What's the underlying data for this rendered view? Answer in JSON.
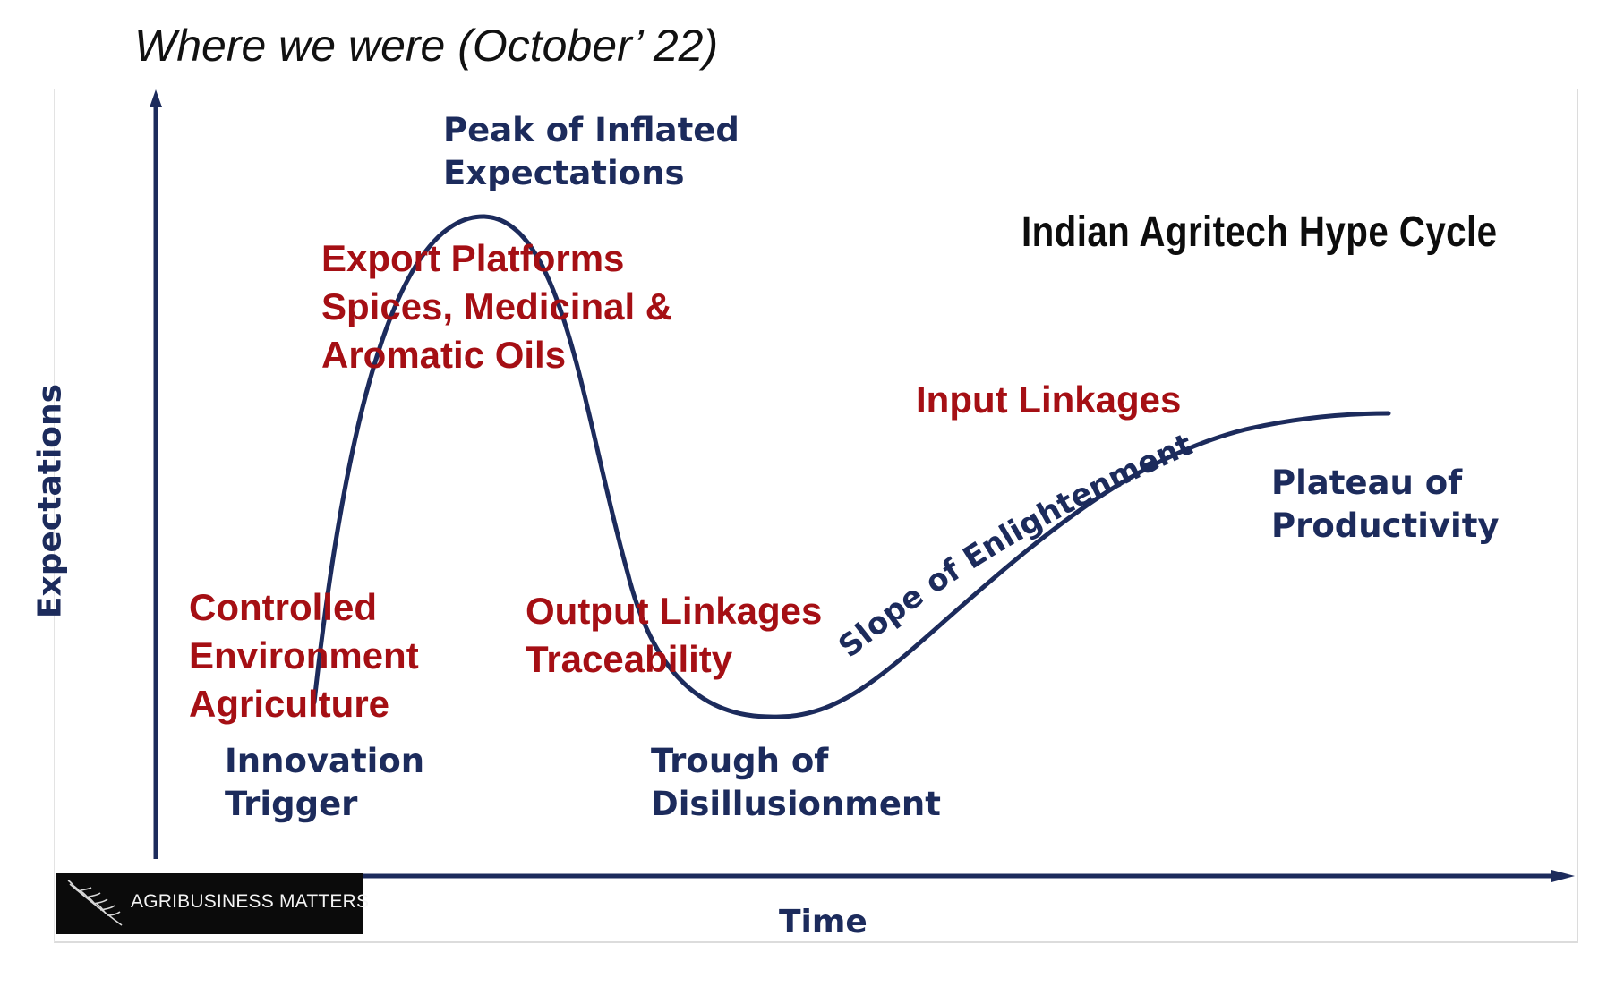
{
  "slide": {
    "title": "Where we were (October’ 22)"
  },
  "diagram": {
    "title": "Indian Agritech Hype Cycle",
    "axis_y": "Expectations",
    "axis_x": "Time",
    "curve_color": "#1c2b5c",
    "stage_color": "#1c2b5c",
    "item_color": "#a50f14",
    "stages": {
      "innovation_trigger": [
        "Innovation",
        "Trigger"
      ],
      "peak": [
        "Peak of Inflated",
        "Expectations"
      ],
      "trough": [
        "Trough of",
        "Disillusionment"
      ],
      "slope": "Slope of Enlightenment",
      "plateau": [
        "Plateau of",
        "Productivity"
      ]
    },
    "items": {
      "controlled_environment": [
        "Controlled",
        "Environment",
        "Agriculture"
      ],
      "export_platforms": [
        "Export Platforms",
        "Spices, Medicinal &",
        "Aromatic Oils"
      ],
      "output_linkages": [
        "Output Linkages",
        "Traceability"
      ],
      "input_linkages": "Input Linkages"
    }
  },
  "logo": {
    "text": "AGRIBUSINESS MATTERS",
    "icon": "olive-branch-icon"
  }
}
